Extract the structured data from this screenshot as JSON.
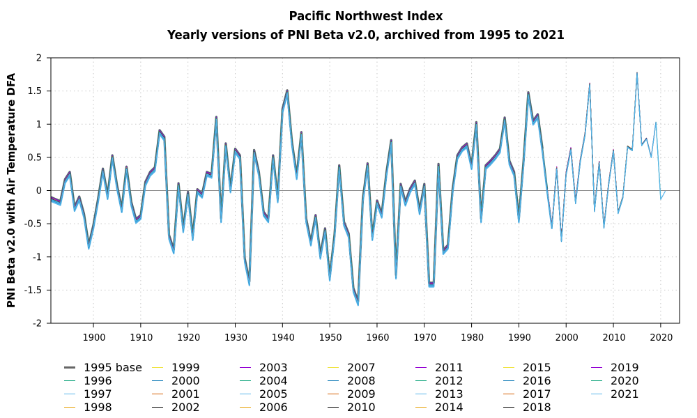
{
  "chart_data": {
    "type": "line",
    "title": "Pacific Northwest Index",
    "subtitle": "Yearly versions of PNI Beta v2.0, archived from 1995 to 2021",
    "xlabel": "",
    "ylabel": "PNI Beta v2.0 with Air Temperature DFA",
    "xlim": [
      1891,
      2024
    ],
    "ylim": [
      -2,
      2
    ],
    "yticks": [
      "2",
      "1.5",
      "1",
      "0.5",
      "0",
      "-0.5",
      "-1",
      "-1.5",
      "-2"
    ],
    "ytick_values": [
      2,
      1.5,
      1,
      0.5,
      0,
      -0.5,
      -1,
      -1.5,
      -2
    ],
    "xticks": [
      "1900",
      "1910",
      "1920",
      "1930",
      "1940",
      "1950",
      "1960",
      "1970",
      "1980",
      "1990",
      "2000",
      "2010",
      "2020"
    ],
    "xtick_values": [
      1900,
      1910,
      1920,
      1930,
      1940,
      1950,
      1960,
      1970,
      1980,
      1990,
      2000,
      2010,
      2020
    ],
    "grid": true,
    "zero_line": true,
    "legend_position": "bottom",
    "x_start": 1891,
    "base_values": [
      -0.13,
      -0.16,
      -0.19,
      0.14,
      0.25,
      -0.28,
      -0.12,
      -0.38,
      -0.85,
      -0.55,
      -0.15,
      0.3,
      -0.1,
      0.5,
      0.05,
      -0.3,
      0.33,
      -0.2,
      -0.46,
      -0.4,
      0.1,
      0.25,
      0.32,
      0.88,
      0.78,
      -0.7,
      -0.92,
      0.08,
      -0.6,
      -0.05,
      -0.72,
      -0.01,
      -0.08,
      0.25,
      0.22,
      1.08,
      -0.45,
      0.68,
      0.0,
      0.6,
      0.5,
      -1.05,
      -1.4,
      0.58,
      0.25,
      -0.35,
      -0.45,
      0.5,
      -0.15,
      1.2,
      1.48,
      0.7,
      0.2,
      0.85,
      -0.45,
      -0.8,
      -0.4,
      -1.0,
      -0.6,
      -1.33,
      -0.7,
      0.35,
      -0.5,
      -0.68,
      -1.5,
      -1.7,
      -0.15,
      0.38,
      -0.72,
      -0.18,
      -0.38,
      0.25,
      0.73,
      -1.3,
      0.07,
      -0.2,
      0.0,
      0.12,
      -0.33,
      0.07,
      -1.42,
      -1.42,
      0.37,
      -0.93,
      -0.85,
      0.0,
      0.5,
      0.62,
      0.68,
      0.35,
      1.0,
      -0.45,
      0.35,
      0.42,
      0.5,
      0.6,
      1.07,
      0.42,
      0.25,
      -0.45,
      0.42,
      1.45,
      1.02,
      1.12,
      0.6,
      0.0,
      -0.55,
      0.33,
      -0.75,
      0.25,
      0.62,
      -0.18,
      0.45,
      0.85,
      1.6,
      -0.3,
      0.42,
      -0.55,
      0.1,
      0.6,
      -0.33,
      -0.1,
      0.66,
      0.61,
      1.77,
      0.68,
      0.78,
      0.5,
      1.03,
      -0.13,
      0.0
    ],
    "series": [
      {
        "name": "1995 base",
        "color": "#666666",
        "end_year": 1995,
        "offset": 0.03
      },
      {
        "name": "1996",
        "color": "#009e73",
        "end_year": 1996,
        "offset": 0.025
      },
      {
        "name": "1997",
        "color": "#56b4e9",
        "end_year": 1997,
        "offset": -0.03
      },
      {
        "name": "1998",
        "color": "#e69f00",
        "end_year": 1998,
        "offset": 0.0
      },
      {
        "name": "1999",
        "color": "#f0e442",
        "end_year": 1999,
        "offset": 0.01
      },
      {
        "name": "2000",
        "color": "#0072b2",
        "end_year": 2000,
        "offset": -0.01
      },
      {
        "name": "2001",
        "color": "#d55e00",
        "end_year": 2001,
        "offset": 0.005
      },
      {
        "name": "2002",
        "color": "#000000",
        "end_year": 2002,
        "offset": 0.02
      },
      {
        "name": "2003",
        "color": "#9400d3",
        "end_year": 2003,
        "offset": 0.028
      },
      {
        "name": "2004",
        "color": "#009e73",
        "end_year": 2004,
        "offset": 0.015
      },
      {
        "name": "2005",
        "color": "#56b4e9",
        "end_year": 2005,
        "offset": -0.02
      },
      {
        "name": "2006",
        "color": "#e69f00",
        "end_year": 2006,
        "offset": 0.005
      },
      {
        "name": "2007",
        "color": "#f0e442",
        "end_year": 2007,
        "offset": 0.0
      },
      {
        "name": "2008",
        "color": "#0072b2",
        "end_year": 2008,
        "offset": -0.015
      },
      {
        "name": "2009",
        "color": "#d55e00",
        "end_year": 2009,
        "offset": 0.01
      },
      {
        "name": "2010",
        "color": "#000000",
        "end_year": 2010,
        "offset": 0.015
      },
      {
        "name": "2011",
        "color": "#9400d3",
        "end_year": 2011,
        "offset": 0.02
      },
      {
        "name": "2012",
        "color": "#009e73",
        "end_year": 2012,
        "offset": 0.0
      },
      {
        "name": "2013",
        "color": "#56b4e9",
        "end_year": 2013,
        "offset": -0.02
      },
      {
        "name": "2014",
        "color": "#e69f00",
        "end_year": 2014,
        "offset": 0.01
      },
      {
        "name": "2015",
        "color": "#f0e442",
        "end_year": 2015,
        "offset": 0.012
      },
      {
        "name": "2016",
        "color": "#0072b2",
        "end_year": 2016,
        "offset": -0.01
      },
      {
        "name": "2017",
        "color": "#d55e00",
        "end_year": 2017,
        "offset": 0.005
      },
      {
        "name": "2018",
        "color": "#000000",
        "end_year": 2018,
        "offset": 0.008
      },
      {
        "name": "2019",
        "color": "#9400d3",
        "end_year": 2019,
        "offset": 0.004
      },
      {
        "name": "2020",
        "color": "#009e73",
        "end_year": 2020,
        "offset": 0.0
      },
      {
        "name": "2021",
        "color": "#56b4e9",
        "end_year": 2021,
        "offset": -0.005
      }
    ]
  }
}
